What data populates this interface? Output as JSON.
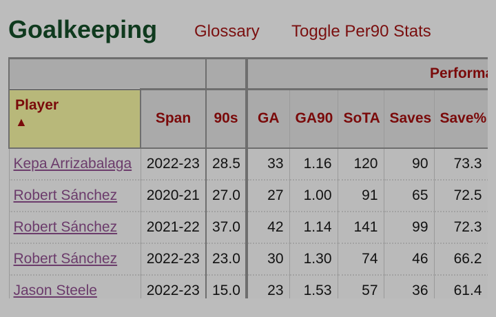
{
  "header": {
    "title": "Goalkeeping",
    "links": [
      "Glossary",
      "Toggle Per90 Stats"
    ]
  },
  "table": {
    "over_header": "Performance",
    "columns": [
      "Player",
      "Span",
      "90s",
      "GA",
      "GA90",
      "SoTA",
      "Saves",
      "Save%"
    ],
    "sort_indicator": "▲",
    "rows": [
      [
        "Kepa Arrizabalaga",
        "2022-23",
        "28.5",
        "33",
        "1.16",
        "120",
        "90",
        "73.3"
      ],
      [
        "Robert Sánchez",
        "2020-21",
        "27.0",
        "27",
        "1.00",
        "91",
        "65",
        "72.5"
      ],
      [
        "Robert Sánchez",
        "2021-22",
        "37.0",
        "42",
        "1.14",
        "141",
        "99",
        "72.3"
      ],
      [
        "Robert Sánchez",
        "2022-23",
        "23.0",
        "30",
        "1.30",
        "74",
        "46",
        "66.2"
      ],
      [
        "Jason Steele",
        "2022-23",
        "15.0",
        "23",
        "1.53",
        "57",
        "36",
        "61.4"
      ]
    ]
  },
  "colors": {
    "title": "#0f3a1e",
    "link": "#7a0f0f",
    "header_text": "#7a0a0a",
    "player_link": "#6b3b6b",
    "sorted_header": "#b8b87a"
  }
}
